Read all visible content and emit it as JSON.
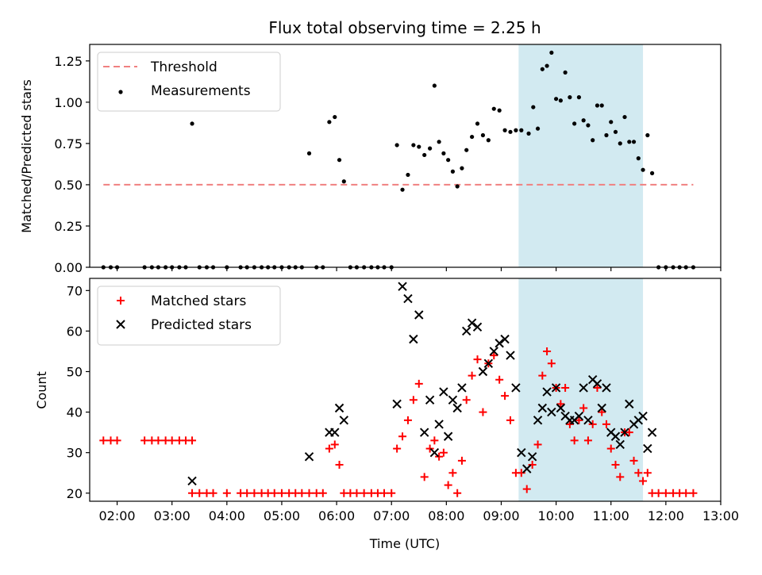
{
  "chart_data": [
    {
      "type": "scatter",
      "title": "Flux total observing time = 2.25 h",
      "ylabel": "Matched/Predicted stars",
      "xlabel": "",
      "xlim": [
        "01:30",
        "13:00"
      ],
      "ylim": [
        0,
        1.35
      ],
      "yticks": [
        0.0,
        0.25,
        0.5,
        0.75,
        1.0,
        1.25
      ],
      "ytick_labels": [
        "0.00",
        "0.25",
        "0.50",
        "0.75",
        "1.00",
        "1.25"
      ],
      "legend_position": "upper left",
      "highlight_span": {
        "start": "09:19",
        "end": "11:35",
        "color": "#add8e6"
      },
      "threshold": {
        "name": "Threshold",
        "value": 0.5,
        "x_start": "01:45",
        "x_end": "12:30",
        "color": "#f08080",
        "style": "dashed"
      },
      "series": [
        {
          "name": "Measurements",
          "marker": "dot",
          "color": "#000000",
          "points": [
            [
              "01:45",
              0
            ],
            [
              "01:53",
              0
            ],
            [
              "02:00",
              0
            ],
            [
              "02:30",
              0
            ],
            [
              "02:38",
              0
            ],
            [
              "02:45",
              0
            ],
            [
              "02:53",
              0
            ],
            [
              "03:00",
              0
            ],
            [
              "03:08",
              0
            ],
            [
              "03:15",
              0
            ],
            [
              "03:22",
              0.87
            ],
            [
              "03:30",
              0
            ],
            [
              "03:38",
              0
            ],
            [
              "03:45",
              0
            ],
            [
              "04:00",
              0
            ],
            [
              "04:15",
              0
            ],
            [
              "04:22",
              0
            ],
            [
              "04:30",
              0
            ],
            [
              "04:38",
              0
            ],
            [
              "04:45",
              0
            ],
            [
              "04:52",
              0
            ],
            [
              "05:00",
              0
            ],
            [
              "05:08",
              0
            ],
            [
              "05:15",
              0
            ],
            [
              "05:22",
              0
            ],
            [
              "05:30",
              0.69
            ],
            [
              "05:38",
              0
            ],
            [
              "05:45",
              0
            ],
            [
              "05:52",
              0.88
            ],
            [
              "05:58",
              0.91
            ],
            [
              "06:03",
              0.65
            ],
            [
              "06:08",
              0.52
            ],
            [
              "06:15",
              0
            ],
            [
              "06:22",
              0
            ],
            [
              "06:30",
              0
            ],
            [
              "06:38",
              0
            ],
            [
              "06:45",
              0
            ],
            [
              "06:52",
              0
            ],
            [
              "07:00",
              0
            ],
            [
              "07:06",
              0.74
            ],
            [
              "07:12",
              0.47
            ],
            [
              "07:18",
              0.56
            ],
            [
              "07:24",
              0.74
            ],
            [
              "07:30",
              0.73
            ],
            [
              "07:36",
              0.68
            ],
            [
              "07:42",
              0.72
            ],
            [
              "07:47",
              1.1
            ],
            [
              "07:52",
              0.76
            ],
            [
              "07:57",
              0.69
            ],
            [
              "08:02",
              0.65
            ],
            [
              "08:07",
              0.58
            ],
            [
              "08:12",
              0.49
            ],
            [
              "08:17",
              0.6
            ],
            [
              "08:22",
              0.71
            ],
            [
              "08:28",
              0.79
            ],
            [
              "08:34",
              0.87
            ],
            [
              "08:40",
              0.8
            ],
            [
              "08:46",
              0.77
            ],
            [
              "08:52",
              0.96
            ],
            [
              "08:58",
              0.95
            ],
            [
              "09:04",
              0.83
            ],
            [
              "09:10",
              0.82
            ],
            [
              "09:16",
              0.83
            ],
            [
              "09:22",
              0.83
            ],
            [
              "09:30",
              0.81
            ],
            [
              "09:35",
              0.97
            ],
            [
              "09:40",
              0.84
            ],
            [
              "09:45",
              1.2
            ],
            [
              "09:50",
              1.22
            ],
            [
              "09:55",
              1.3
            ],
            [
              "10:00",
              1.02
            ],
            [
              "10:05",
              1.01
            ],
            [
              "10:10",
              1.18
            ],
            [
              "10:15",
              1.03
            ],
            [
              "10:20",
              0.87
            ],
            [
              "10:25",
              1.03
            ],
            [
              "10:30",
              0.89
            ],
            [
              "10:35",
              0.86
            ],
            [
              "10:40",
              0.77
            ],
            [
              "10:45",
              0.98
            ],
            [
              "10:50",
              0.98
            ],
            [
              "10:55",
              0.8
            ],
            [
              "11:00",
              0.88
            ],
            [
              "11:05",
              0.82
            ],
            [
              "11:10",
              0.75
            ],
            [
              "11:15",
              0.91
            ],
            [
              "11:20",
              0.76
            ],
            [
              "11:25",
              0.76
            ],
            [
              "11:30",
              0.66
            ],
            [
              "11:35",
              0.59
            ],
            [
              "11:40",
              0.8
            ],
            [
              "11:45",
              0.57
            ],
            [
              "11:52",
              0
            ],
            [
              "12:00",
              0
            ],
            [
              "12:08",
              0
            ],
            [
              "12:15",
              0
            ],
            [
              "12:22",
              0
            ],
            [
              "12:30",
              0
            ]
          ]
        }
      ]
    },
    {
      "type": "scatter",
      "title": "",
      "ylabel": "Count",
      "xlabel": "Time (UTC)",
      "xlim": [
        "01:30",
        "13:00"
      ],
      "ylim": [
        18,
        73
      ],
      "xticks": [
        "02:00",
        "03:00",
        "04:00",
        "05:00",
        "06:00",
        "07:00",
        "08:00",
        "09:00",
        "10:00",
        "11:00",
        "12:00",
        "13:00"
      ],
      "yticks": [
        20,
        30,
        40,
        50,
        60,
        70
      ],
      "legend_position": "upper left",
      "highlight_span": {
        "start": "09:19",
        "end": "11:35",
        "color": "#add8e6"
      },
      "series": [
        {
          "name": "Matched stars",
          "marker": "plus",
          "color": "#ff0000",
          "points": [
            [
              "01:45",
              33
            ],
            [
              "01:53",
              33
            ],
            [
              "02:00",
              33
            ],
            [
              "02:30",
              33
            ],
            [
              "02:38",
              33
            ],
            [
              "02:45",
              33
            ],
            [
              "02:53",
              33
            ],
            [
              "03:00",
              33
            ],
            [
              "03:08",
              33
            ],
            [
              "03:15",
              33
            ],
            [
              "03:22",
              33
            ],
            [
              "03:22",
              20
            ],
            [
              "03:30",
              20
            ],
            [
              "03:38",
              20
            ],
            [
              "03:45",
              20
            ],
            [
              "04:00",
              20
            ],
            [
              "04:15",
              20
            ],
            [
              "04:22",
              20
            ],
            [
              "04:30",
              20
            ],
            [
              "04:38",
              20
            ],
            [
              "04:45",
              20
            ],
            [
              "04:52",
              20
            ],
            [
              "05:00",
              20
            ],
            [
              "05:08",
              20
            ],
            [
              "05:15",
              20
            ],
            [
              "05:22",
              20
            ],
            [
              "05:30",
              20
            ],
            [
              "05:38",
              20
            ],
            [
              "05:45",
              20
            ],
            [
              "05:52",
              31
            ],
            [
              "05:58",
              32
            ],
            [
              "06:03",
              27
            ],
            [
              "06:08",
              20
            ],
            [
              "06:15",
              20
            ],
            [
              "06:22",
              20
            ],
            [
              "06:30",
              20
            ],
            [
              "06:38",
              20
            ],
            [
              "06:45",
              20
            ],
            [
              "06:52",
              20
            ],
            [
              "07:00",
              20
            ],
            [
              "07:06",
              31
            ],
            [
              "07:12",
              34
            ],
            [
              "07:18",
              38
            ],
            [
              "07:24",
              43
            ],
            [
              "07:30",
              47
            ],
            [
              "07:36",
              24
            ],
            [
              "07:42",
              31
            ],
            [
              "07:47",
              33
            ],
            [
              "07:52",
              29
            ],
            [
              "07:57",
              30
            ],
            [
              "08:02",
              22
            ],
            [
              "08:07",
              25
            ],
            [
              "08:12",
              20
            ],
            [
              "08:17",
              28
            ],
            [
              "08:22",
              43
            ],
            [
              "08:28",
              49
            ],
            [
              "08:34",
              53
            ],
            [
              "08:40",
              40
            ],
            [
              "08:46",
              52
            ],
            [
              "08:52",
              54
            ],
            [
              "08:58",
              48
            ],
            [
              "09:04",
              44
            ],
            [
              "09:10",
              38
            ],
            [
              "09:16",
              25
            ],
            [
              "09:22",
              25
            ],
            [
              "09:28",
              21
            ],
            [
              "09:34",
              27
            ],
            [
              "09:40",
              32
            ],
            [
              "09:45",
              49
            ],
            [
              "09:50",
              55
            ],
            [
              "09:55",
              52
            ],
            [
              "10:00",
              46
            ],
            [
              "10:05",
              42
            ],
            [
              "10:10",
              46
            ],
            [
              "10:15",
              37
            ],
            [
              "10:20",
              33
            ],
            [
              "10:25",
              38
            ],
            [
              "10:30",
              41
            ],
            [
              "10:35",
              33
            ],
            [
              "10:40",
              37
            ],
            [
              "10:45",
              46
            ],
            [
              "10:50",
              40
            ],
            [
              "10:55",
              37
            ],
            [
              "11:00",
              31
            ],
            [
              "11:05",
              27
            ],
            [
              "11:10",
              24
            ],
            [
              "11:15",
              35
            ],
            [
              "11:20",
              35
            ],
            [
              "11:25",
              28
            ],
            [
              "11:30",
              25
            ],
            [
              "11:35",
              23
            ],
            [
              "11:40",
              25
            ],
            [
              "11:45",
              20
            ],
            [
              "11:52",
              20
            ],
            [
              "12:00",
              20
            ],
            [
              "12:08",
              20
            ],
            [
              "12:15",
              20
            ],
            [
              "12:22",
              20
            ],
            [
              "12:30",
              20
            ]
          ]
        },
        {
          "name": "Predicted stars",
          "marker": "x",
          "color": "#000000",
          "points": [
            [
              "03:22",
              23
            ],
            [
              "05:30",
              29
            ],
            [
              "05:52",
              35
            ],
            [
              "05:58",
              35
            ],
            [
              "06:03",
              41
            ],
            [
              "06:08",
              38
            ],
            [
              "07:06",
              42
            ],
            [
              "07:12",
              71
            ],
            [
              "07:18",
              68
            ],
            [
              "07:24",
              58
            ],
            [
              "07:30",
              64
            ],
            [
              "07:36",
              35
            ],
            [
              "07:42",
              43
            ],
            [
              "07:47",
              30
            ],
            [
              "07:52",
              37
            ],
            [
              "07:57",
              45
            ],
            [
              "08:02",
              34
            ],
            [
              "08:07",
              43
            ],
            [
              "08:12",
              41
            ],
            [
              "08:17",
              46
            ],
            [
              "08:22",
              60
            ],
            [
              "08:28",
              62
            ],
            [
              "08:34",
              61
            ],
            [
              "08:40",
              50
            ],
            [
              "08:46",
              52
            ],
            [
              "08:52",
              55
            ],
            [
              "08:58",
              57
            ],
            [
              "09:04",
              58
            ],
            [
              "09:10",
              54
            ],
            [
              "09:16",
              46
            ],
            [
              "09:22",
              30
            ],
            [
              "09:28",
              26
            ],
            [
              "09:34",
              29
            ],
            [
              "09:40",
              38
            ],
            [
              "09:45",
              41
            ],
            [
              "09:50",
              45
            ],
            [
              "09:55",
              40
            ],
            [
              "10:00",
              46
            ],
            [
              "10:05",
              41
            ],
            [
              "10:10",
              39
            ],
            [
              "10:15",
              38
            ],
            [
              "10:20",
              38
            ],
            [
              "10:25",
              39
            ],
            [
              "10:30",
              46
            ],
            [
              "10:35",
              38
            ],
            [
              "10:40",
              48
            ],
            [
              "10:45",
              47
            ],
            [
              "10:50",
              41
            ],
            [
              "10:55",
              46
            ],
            [
              "11:00",
              35
            ],
            [
              "11:05",
              34
            ],
            [
              "11:10",
              32
            ],
            [
              "11:15",
              35
            ],
            [
              "11:20",
              42
            ],
            [
              "11:25",
              37
            ],
            [
              "11:30",
              38
            ],
            [
              "11:35",
              39
            ],
            [
              "11:40",
              31
            ],
            [
              "11:45",
              35
            ]
          ]
        }
      ]
    }
  ]
}
